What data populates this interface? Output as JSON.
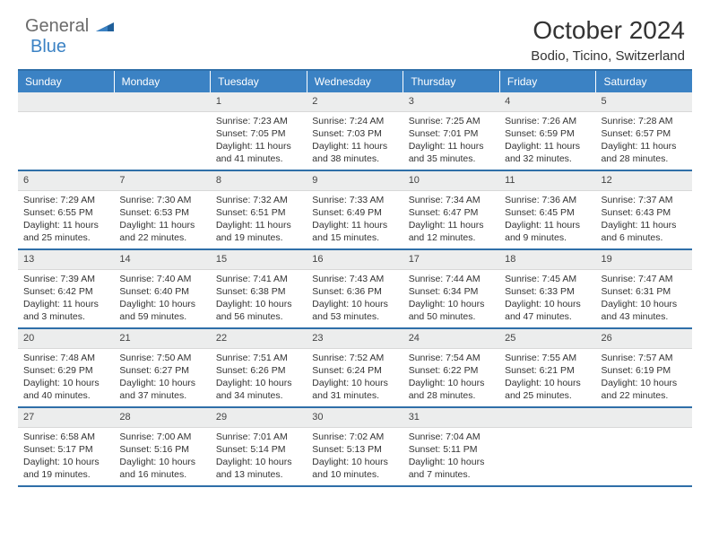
{
  "brand": {
    "general": "General",
    "blue": "Blue",
    "logo_color": "#1f5f9a"
  },
  "title": "October 2024",
  "location": "Bodio, Ticino, Switzerland",
  "colors": {
    "header_bg": "#3b82c4",
    "header_text": "#ffffff",
    "row_border": "#2f6fa8",
    "daynum_bg": "#eceded"
  },
  "daynames": [
    "Sunday",
    "Monday",
    "Tuesday",
    "Wednesday",
    "Thursday",
    "Friday",
    "Saturday"
  ],
  "weeks": [
    [
      {
        "n": "",
        "lines": []
      },
      {
        "n": "",
        "lines": []
      },
      {
        "n": "1",
        "lines": [
          "Sunrise: 7:23 AM",
          "Sunset: 7:05 PM",
          "Daylight: 11 hours and 41 minutes."
        ]
      },
      {
        "n": "2",
        "lines": [
          "Sunrise: 7:24 AM",
          "Sunset: 7:03 PM",
          "Daylight: 11 hours and 38 minutes."
        ]
      },
      {
        "n": "3",
        "lines": [
          "Sunrise: 7:25 AM",
          "Sunset: 7:01 PM",
          "Daylight: 11 hours and 35 minutes."
        ]
      },
      {
        "n": "4",
        "lines": [
          "Sunrise: 7:26 AM",
          "Sunset: 6:59 PM",
          "Daylight: 11 hours and 32 minutes."
        ]
      },
      {
        "n": "5",
        "lines": [
          "Sunrise: 7:28 AM",
          "Sunset: 6:57 PM",
          "Daylight: 11 hours and 28 minutes."
        ]
      }
    ],
    [
      {
        "n": "6",
        "lines": [
          "Sunrise: 7:29 AM",
          "Sunset: 6:55 PM",
          "Daylight: 11 hours and 25 minutes."
        ]
      },
      {
        "n": "7",
        "lines": [
          "Sunrise: 7:30 AM",
          "Sunset: 6:53 PM",
          "Daylight: 11 hours and 22 minutes."
        ]
      },
      {
        "n": "8",
        "lines": [
          "Sunrise: 7:32 AM",
          "Sunset: 6:51 PM",
          "Daylight: 11 hours and 19 minutes."
        ]
      },
      {
        "n": "9",
        "lines": [
          "Sunrise: 7:33 AM",
          "Sunset: 6:49 PM",
          "Daylight: 11 hours and 15 minutes."
        ]
      },
      {
        "n": "10",
        "lines": [
          "Sunrise: 7:34 AM",
          "Sunset: 6:47 PM",
          "Daylight: 11 hours and 12 minutes."
        ]
      },
      {
        "n": "11",
        "lines": [
          "Sunrise: 7:36 AM",
          "Sunset: 6:45 PM",
          "Daylight: 11 hours and 9 minutes."
        ]
      },
      {
        "n": "12",
        "lines": [
          "Sunrise: 7:37 AM",
          "Sunset: 6:43 PM",
          "Daylight: 11 hours and 6 minutes."
        ]
      }
    ],
    [
      {
        "n": "13",
        "lines": [
          "Sunrise: 7:39 AM",
          "Sunset: 6:42 PM",
          "Daylight: 11 hours and 3 minutes."
        ]
      },
      {
        "n": "14",
        "lines": [
          "Sunrise: 7:40 AM",
          "Sunset: 6:40 PM",
          "Daylight: 10 hours and 59 minutes."
        ]
      },
      {
        "n": "15",
        "lines": [
          "Sunrise: 7:41 AM",
          "Sunset: 6:38 PM",
          "Daylight: 10 hours and 56 minutes."
        ]
      },
      {
        "n": "16",
        "lines": [
          "Sunrise: 7:43 AM",
          "Sunset: 6:36 PM",
          "Daylight: 10 hours and 53 minutes."
        ]
      },
      {
        "n": "17",
        "lines": [
          "Sunrise: 7:44 AM",
          "Sunset: 6:34 PM",
          "Daylight: 10 hours and 50 minutes."
        ]
      },
      {
        "n": "18",
        "lines": [
          "Sunrise: 7:45 AM",
          "Sunset: 6:33 PM",
          "Daylight: 10 hours and 47 minutes."
        ]
      },
      {
        "n": "19",
        "lines": [
          "Sunrise: 7:47 AM",
          "Sunset: 6:31 PM",
          "Daylight: 10 hours and 43 minutes."
        ]
      }
    ],
    [
      {
        "n": "20",
        "lines": [
          "Sunrise: 7:48 AM",
          "Sunset: 6:29 PM",
          "Daylight: 10 hours and 40 minutes."
        ]
      },
      {
        "n": "21",
        "lines": [
          "Sunrise: 7:50 AM",
          "Sunset: 6:27 PM",
          "Daylight: 10 hours and 37 minutes."
        ]
      },
      {
        "n": "22",
        "lines": [
          "Sunrise: 7:51 AM",
          "Sunset: 6:26 PM",
          "Daylight: 10 hours and 34 minutes."
        ]
      },
      {
        "n": "23",
        "lines": [
          "Sunrise: 7:52 AM",
          "Sunset: 6:24 PM",
          "Daylight: 10 hours and 31 minutes."
        ]
      },
      {
        "n": "24",
        "lines": [
          "Sunrise: 7:54 AM",
          "Sunset: 6:22 PM",
          "Daylight: 10 hours and 28 minutes."
        ]
      },
      {
        "n": "25",
        "lines": [
          "Sunrise: 7:55 AM",
          "Sunset: 6:21 PM",
          "Daylight: 10 hours and 25 minutes."
        ]
      },
      {
        "n": "26",
        "lines": [
          "Sunrise: 7:57 AM",
          "Sunset: 6:19 PM",
          "Daylight: 10 hours and 22 minutes."
        ]
      }
    ],
    [
      {
        "n": "27",
        "lines": [
          "Sunrise: 6:58 AM",
          "Sunset: 5:17 PM",
          "Daylight: 10 hours and 19 minutes."
        ]
      },
      {
        "n": "28",
        "lines": [
          "Sunrise: 7:00 AM",
          "Sunset: 5:16 PM",
          "Daylight: 10 hours and 16 minutes."
        ]
      },
      {
        "n": "29",
        "lines": [
          "Sunrise: 7:01 AM",
          "Sunset: 5:14 PM",
          "Daylight: 10 hours and 13 minutes."
        ]
      },
      {
        "n": "30",
        "lines": [
          "Sunrise: 7:02 AM",
          "Sunset: 5:13 PM",
          "Daylight: 10 hours and 10 minutes."
        ]
      },
      {
        "n": "31",
        "lines": [
          "Sunrise: 7:04 AM",
          "Sunset: 5:11 PM",
          "Daylight: 10 hours and 7 minutes."
        ]
      },
      {
        "n": "",
        "lines": []
      },
      {
        "n": "",
        "lines": []
      }
    ]
  ]
}
